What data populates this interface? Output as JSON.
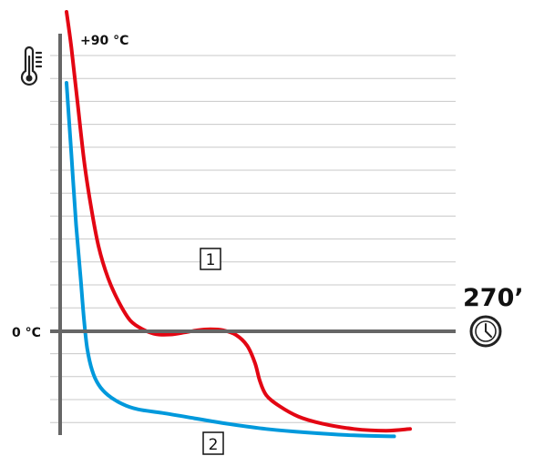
{
  "chart_data": {
    "type": "line",
    "y_top_label": "+90 °C",
    "y_zero_label": "0 °C",
    "time_label": "270’",
    "icons": [
      "thermometer-icon",
      "clock-icon"
    ],
    "ylim": [
      -30,
      90
    ],
    "grid": true,
    "series": [
      {
        "label": "1",
        "color": "#e30613",
        "points": [
          [
            0,
            90
          ],
          [
            3,
            80
          ],
          [
            7,
            64
          ],
          [
            11,
            48
          ],
          [
            15,
            36
          ],
          [
            20,
            24
          ],
          [
            26,
            15
          ],
          [
            33,
            8
          ],
          [
            40,
            3
          ],
          [
            48,
            0.5
          ],
          [
            56,
            -0.8
          ],
          [
            65,
            -0.9
          ],
          [
            74,
            -0.3
          ],
          [
            82,
            0.3
          ],
          [
            90,
            0.6
          ],
          [
            98,
            0.3
          ],
          [
            106,
            -1
          ],
          [
            113,
            -4
          ],
          [
            118,
            -9
          ],
          [
            121,
            -14
          ],
          [
            125,
            -18
          ],
          [
            133,
            -21
          ],
          [
            145,
            -24
          ],
          [
            160,
            -26
          ],
          [
            180,
            -27.5
          ],
          [
            200,
            -28
          ],
          [
            215,
            -27.5
          ]
        ]
      },
      {
        "label": "2",
        "color": "#0099dc",
        "points": [
          [
            0,
            70
          ],
          [
            3,
            50
          ],
          [
            6,
            30
          ],
          [
            9,
            14
          ],
          [
            11,
            3
          ],
          [
            13,
            -5
          ],
          [
            16,
            -11
          ],
          [
            20,
            -15
          ],
          [
            26,
            -18
          ],
          [
            35,
            -20.5
          ],
          [
            45,
            -22
          ],
          [
            60,
            -23
          ],
          [
            80,
            -24.5
          ],
          [
            100,
            -26
          ],
          [
            125,
            -27.5
          ],
          [
            150,
            -28.5
          ],
          [
            180,
            -29.3
          ],
          [
            205,
            -29.6
          ]
        ]
      }
    ]
  }
}
